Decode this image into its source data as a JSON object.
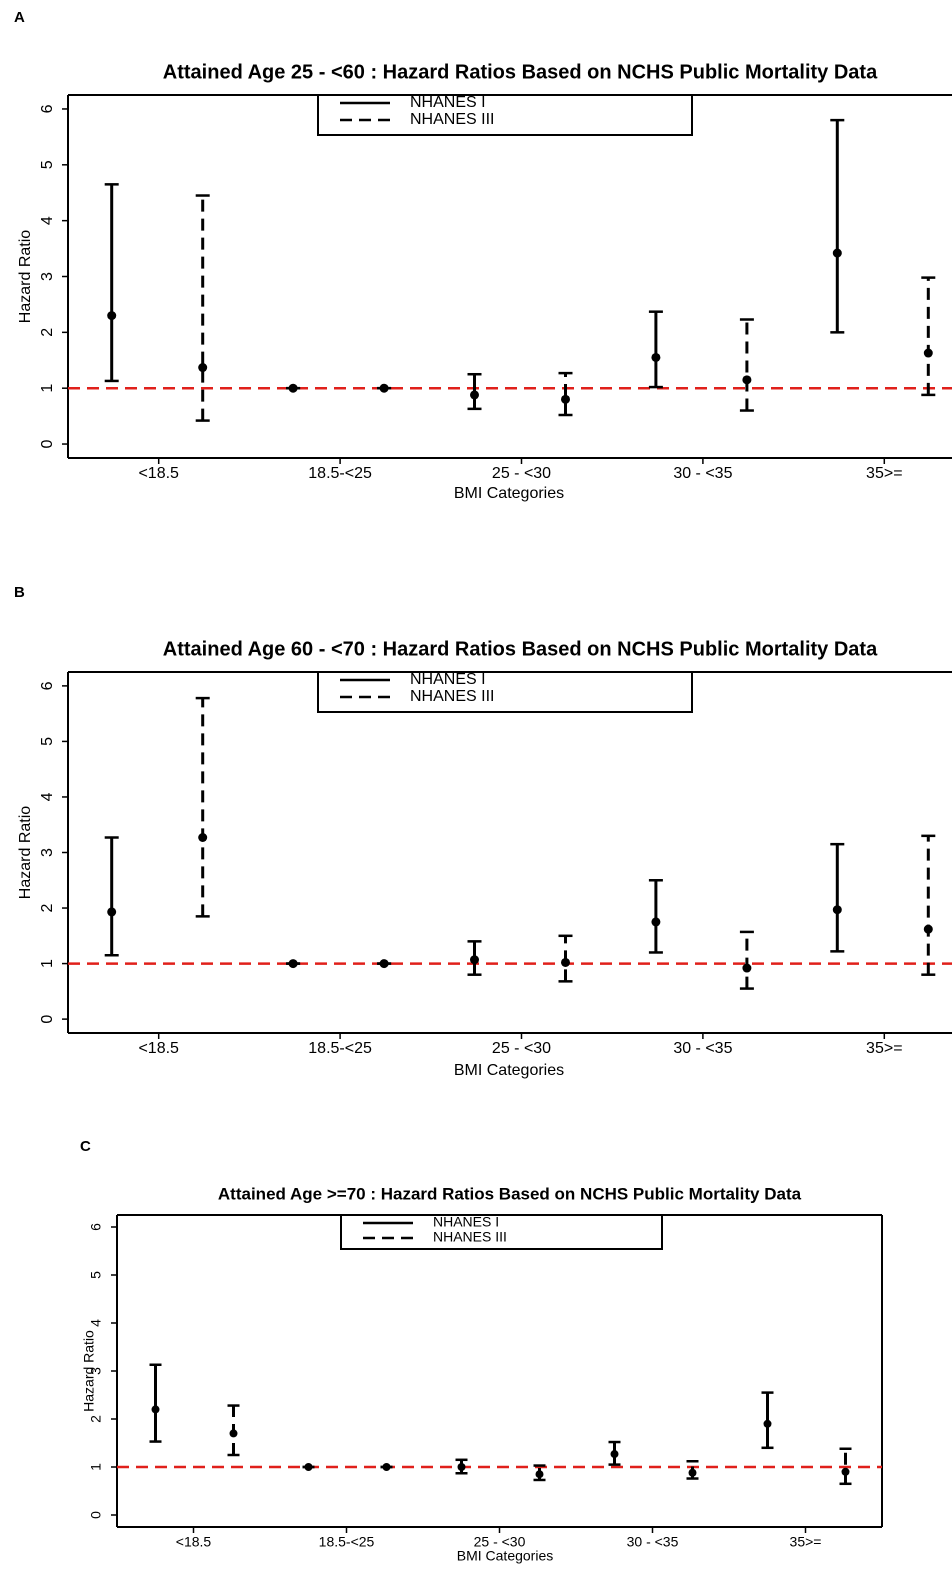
{
  "chart_data": [
    {
      "type": "errorbar",
      "panel": "A",
      "title": "Attained Age 25 - <60 : Hazard Ratios Based on NCHS Public Mortality Data",
      "xlabel": "BMI Categories",
      "ylabel": "Hazard Ratio",
      "categories": [
        "<18.5",
        "18.5-<25",
        "25 - <30",
        "30 - <35",
        "35>="
      ],
      "ylim": [
        -0.25,
        6.25
      ],
      "yticks": [
        0,
        1,
        2,
        3,
        4,
        5,
        6
      ],
      "hline": 1,
      "hline_color": "#e0201b",
      "series": [
        {
          "name": "NHANES I",
          "linestyle": "solid",
          "color": "#000000",
          "values": [
            2.3,
            1,
            0.88,
            1.55,
            3.42
          ],
          "lower": [
            1.13,
            1,
            0.63,
            1.02,
            2.0
          ],
          "upper": [
            4.65,
            1,
            1.25,
            2.37,
            5.8
          ]
        },
        {
          "name": "NHANES III",
          "linestyle": "dashed",
          "color": "#000000",
          "values": [
            1.37,
            1,
            0.8,
            1.15,
            1.63
          ],
          "lower": [
            0.42,
            1,
            0.52,
            0.6,
            0.88
          ],
          "upper": [
            4.45,
            1,
            1.27,
            2.23,
            2.98
          ]
        }
      ]
    },
    {
      "type": "errorbar",
      "panel": "B",
      "title": "Attained Age 60 - <70 : Hazard Ratios Based on NCHS Public Mortality Data",
      "xlabel": "BMI Categories",
      "ylabel": "Hazard Ratio",
      "categories": [
        "<18.5",
        "18.5-<25",
        "25 - <30",
        "30 - <35",
        "35>="
      ],
      "ylim": [
        -0.25,
        6.25
      ],
      "yticks": [
        0,
        1,
        2,
        3,
        4,
        5,
        6
      ],
      "hline": 1,
      "hline_color": "#e0201b",
      "series": [
        {
          "name": "NHANES I",
          "linestyle": "solid",
          "color": "#000000",
          "values": [
            1.93,
            1,
            1.07,
            1.75,
            1.97
          ],
          "lower": [
            1.15,
            1,
            0.8,
            1.2,
            1.22
          ],
          "upper": [
            3.27,
            1,
            1.4,
            2.5,
            3.15
          ]
        },
        {
          "name": "NHANES III",
          "linestyle": "dashed",
          "color": "#000000",
          "values": [
            3.27,
            1,
            1.02,
            0.92,
            1.62
          ],
          "lower": [
            1.85,
            1,
            0.68,
            0.55,
            0.8
          ],
          "upper": [
            5.78,
            1,
            1.5,
            1.57,
            3.3
          ]
        }
      ]
    },
    {
      "type": "errorbar",
      "panel": "C",
      "title": "Attained Age >=70 : Hazard Ratios Based on NCHS Public Mortality Data",
      "xlabel": "BMI Categories",
      "ylabel": "Hazard Ratio",
      "categories": [
        "<18.5",
        "18.5-<25",
        "25 - <30",
        "30 - <35",
        "35>="
      ],
      "ylim": [
        -0.25,
        6.25
      ],
      "yticks": [
        0,
        1,
        2,
        3,
        4,
        5,
        6
      ],
      "hline": 1,
      "hline_color": "#e0201b",
      "series": [
        {
          "name": "NHANES I",
          "linestyle": "solid",
          "color": "#000000",
          "values": [
            2.2,
            1,
            1.0,
            1.27,
            1.9
          ],
          "lower": [
            1.53,
            1,
            0.87,
            1.05,
            1.4
          ],
          "upper": [
            3.13,
            1,
            1.15,
            1.52,
            2.55
          ]
        },
        {
          "name": "NHANES III",
          "linestyle": "dashed",
          "color": "#000000",
          "values": [
            1.7,
            1,
            0.85,
            0.88,
            0.9
          ],
          "lower": [
            1.25,
            1,
            0.73,
            0.76,
            0.65
          ],
          "upper": [
            2.28,
            1,
            1.03,
            1.12,
            1.38
          ]
        }
      ]
    }
  ]
}
